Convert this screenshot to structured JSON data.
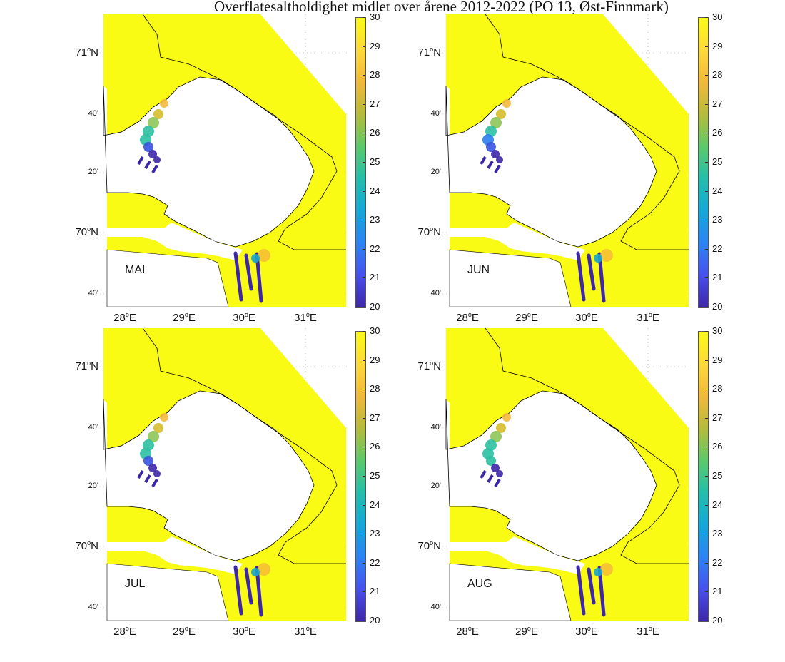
{
  "title": "Overflatesaltholdighet midlet over årene 2012-2022 (PO 13, Øst-Finnmark)",
  "colors": {
    "sea": "#f9fb14",
    "land": "#ffffff",
    "coast": "#000000",
    "grid": "#999999",
    "low_salinity": "#3e26a8",
    "mid_salinity": "#1fa3c2",
    "high_salinity": "#f6b83a"
  },
  "axes": {
    "y_labels": [
      {
        "key": "71",
        "deg": "71",
        "suffix": "N"
      },
      {
        "key": "40a",
        "text": "40'"
      },
      {
        "key": "20",
        "text": "20'"
      },
      {
        "key": "70",
        "deg": "70",
        "suffix": "N"
      },
      {
        "key": "40b",
        "text": "40'"
      }
    ],
    "x_labels": [
      {
        "key": "28",
        "deg": "28",
        "suffix": "E"
      },
      {
        "key": "29",
        "deg": "29",
        "suffix": "E"
      },
      {
        "key": "30",
        "deg": "30",
        "suffix": "E"
      },
      {
        "key": "31",
        "deg": "31",
        "suffix": "E"
      }
    ]
  },
  "colorbar": {
    "min": 20,
    "max": 30,
    "ticks": [
      "20",
      "21",
      "22",
      "23",
      "24",
      "25",
      "26",
      "27",
      "28",
      "29",
      "30"
    ]
  },
  "panels": [
    {
      "month": "MAI",
      "fresh_strength": 1.0
    },
    {
      "month": "JUN",
      "fresh_strength": 1.1
    },
    {
      "month": "JUL",
      "fresh_strength": 0.9
    },
    {
      "month": "AUG",
      "fresh_strength": 0.7
    }
  ]
}
